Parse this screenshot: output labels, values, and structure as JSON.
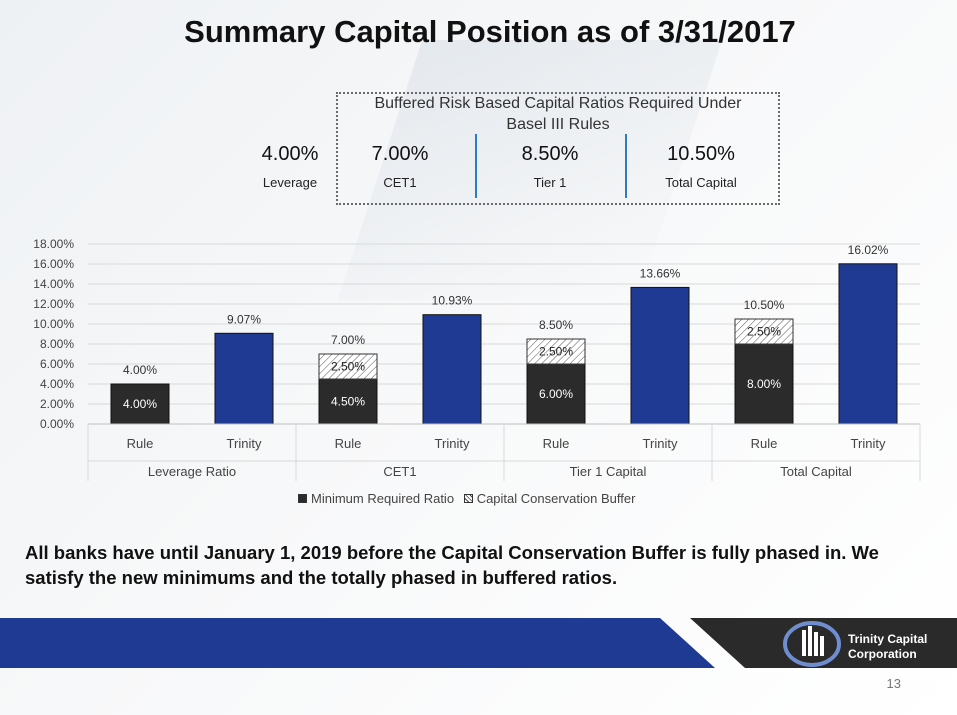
{
  "slide": {
    "title": "Summary Capital Position as of 3/31/2017",
    "note": "All banks have until January 1, 2019 before the Capital Conservation Buffer is fully phased in.  We satisfy the new minimums and the totally phased in buffered ratios.",
    "page_number": "13",
    "logo": {
      "line1": "Trinity Capital",
      "line2": "Corporation",
      "icon": "building-globe-icon"
    }
  },
  "ratio_box": {
    "heading_line1": "Buffered Risk Based Capital Ratios Required Under",
    "heading_line2": "Basel III Rules",
    "items": [
      {
        "value": "4.00%",
        "label": "Leverage"
      },
      {
        "value": "7.00%",
        "label": "CET1"
      },
      {
        "value": "8.50%",
        "label": "Tier 1"
      },
      {
        "value": "10.50%",
        "label": "Total Capital"
      }
    ]
  },
  "chart_data": {
    "type": "bar",
    "stacked": true,
    "ylim": [
      0,
      18
    ],
    "yticks": [
      "0.00%",
      "2.00%",
      "4.00%",
      "6.00%",
      "8.00%",
      "10.00%",
      "12.00%",
      "14.00%",
      "16.00%",
      "18.00%"
    ],
    "categories": [
      "Rule",
      "Trinity",
      "Rule",
      "Trinity",
      "Rule",
      "Trinity",
      "Rule",
      "Trinity"
    ],
    "groups": [
      "Leverage Ratio",
      "CET1",
      "Tier 1 Capital",
      "Total Capital"
    ],
    "series": [
      {
        "name": "Minimum Required Ratio",
        "values": [
          4.0,
          null,
          4.5,
          null,
          6.0,
          null,
          8.0,
          null
        ],
        "labels": [
          "4.00%",
          "",
          "4.50%",
          "",
          "6.00%",
          "",
          "8.00%",
          ""
        ]
      },
      {
        "name": "Capital Conservation Buffer",
        "values": [
          null,
          null,
          2.5,
          null,
          2.5,
          null,
          2.5,
          null
        ],
        "labels": [
          "",
          "",
          "2.50%",
          "",
          "2.50%",
          "",
          "2.50%",
          ""
        ]
      },
      {
        "name": "Trinity",
        "values": [
          null,
          9.07,
          null,
          10.93,
          null,
          13.66,
          null,
          16.02
        ],
        "labels": [
          "",
          "9.07%",
          "",
          "10.93%",
          "",
          "13.66%",
          "",
          "16.02%"
        ]
      }
    ],
    "totals": [
      "4.00%",
      "9.07%",
      "7.00%",
      "10.93%",
      "8.50%",
      "13.66%",
      "10.50%",
      "16.02%"
    ],
    "legend": [
      "Minimum Required Ratio",
      "Capital Conservation Buffer"
    ],
    "legend_position": "bottom",
    "colors": {
      "minimum": "#2b2b2b",
      "trinity": "#1f3a93",
      "buffer_hatch": "#444444"
    }
  },
  "footer": {
    "bar_color": "#1f3a93"
  }
}
